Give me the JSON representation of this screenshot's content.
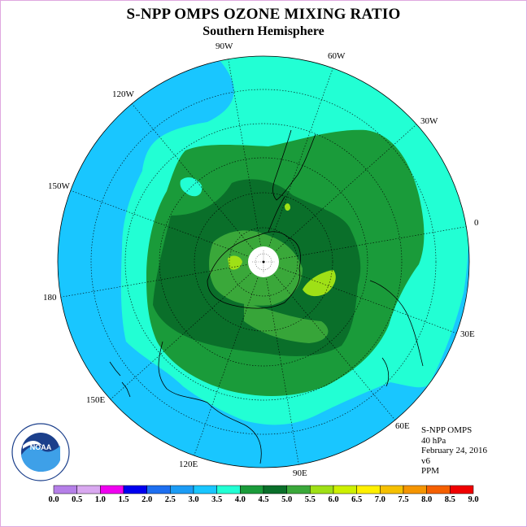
{
  "header": {
    "title": "S-NPP OMPS OZONE MIXING RATIO",
    "subtitle": "Southern Hemisphere"
  },
  "map": {
    "projection": "south polar stereographic",
    "longitude_labels": [
      "90W",
      "60W",
      "30W",
      "0",
      "30E",
      "60E",
      "90E",
      "120E",
      "150E",
      "180",
      "150W",
      "120W"
    ],
    "colors": {
      "ocean_outer": "#19c6ff",
      "mid_band": "#22ffd4",
      "ring_4_0": "#1a9b3a",
      "core_4_5": "#0a6f2a",
      "patch_5_0": "#3aa83a",
      "high_5_5": "#9fe016",
      "pole_missing": "#ffffff"
    }
  },
  "info": {
    "instrument": "S-NPP OMPS",
    "level": "40 hPa",
    "date": "February 24, 2016",
    "version": "v6",
    "units": "PPM"
  },
  "colorbar": {
    "ticks": [
      "0.0",
      "0.5",
      "1.0",
      "1.5",
      "2.0",
      "2.5",
      "3.0",
      "3.5",
      "4.0",
      "4.5",
      "5.0",
      "5.5",
      "6.0",
      "6.5",
      "7.0",
      "7.5",
      "8.0",
      "8.5",
      "9.0"
    ],
    "colors": [
      "#b57fe8",
      "#d9a8f0",
      "#f000f0",
      "#0000f0",
      "#1e6ff0",
      "#1c9cf5",
      "#19c6ff",
      "#22ffd4",
      "#1a9b3a",
      "#0a6f2a",
      "#3aa83a",
      "#9fe016",
      "#cdf000",
      "#fff000",
      "#f5c000",
      "#f59500",
      "#f56000",
      "#f00000",
      "#8b5a3c"
    ]
  },
  "logo": {
    "name": "NOAA",
    "ring_text": "NATIONAL OCEANIC AND ATMOSPHERIC ADMINISTRATION · U.S. DEPARTMENT OF COMMERCE"
  }
}
